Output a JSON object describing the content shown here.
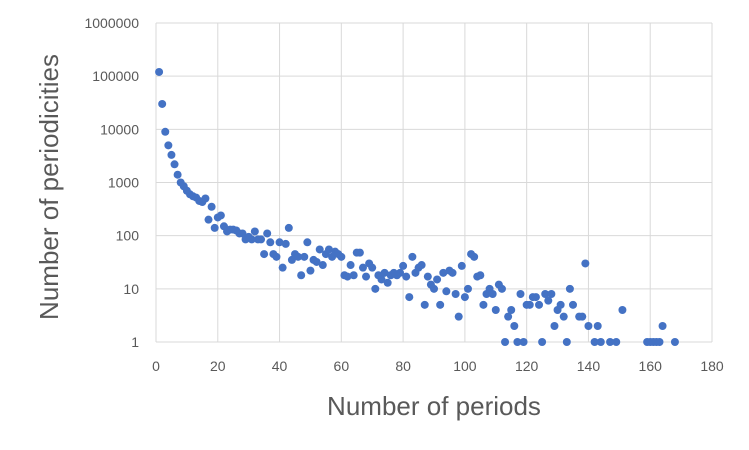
{
  "chart_data": {
    "type": "scatter",
    "title": "",
    "xlabel": "Number of periods",
    "ylabel": "Number of periodicities",
    "xlim": [
      0,
      180
    ],
    "ylim": [
      1,
      1000000
    ],
    "y_scale": "log",
    "grid": true,
    "legend": "none",
    "marker_color": "#4472c4",
    "x_ticks": [
      "0",
      "20",
      "40",
      "60",
      "80",
      "100",
      "120",
      "140",
      "160",
      "180"
    ],
    "y_ticks": [
      "1",
      "10",
      "100",
      "1000",
      "10000",
      "100000",
      "1000000"
    ],
    "x_tick_values": [
      0,
      20,
      40,
      60,
      80,
      100,
      120,
      140,
      160,
      180
    ],
    "y_tick_values": [
      1,
      10,
      100,
      1000,
      10000,
      100000,
      1000000
    ],
    "series": [
      {
        "points": [
          [
            1,
            120000
          ],
          [
            2,
            30000
          ],
          [
            3,
            9000
          ],
          [
            4,
            5000
          ],
          [
            5,
            3300
          ],
          [
            6,
            2200
          ],
          [
            7,
            1400
          ],
          [
            8,
            1000
          ],
          [
            9,
            850
          ],
          [
            10,
            700
          ],
          [
            11,
            600
          ],
          [
            12,
            550
          ],
          [
            13,
            520
          ],
          [
            14,
            450
          ],
          [
            15,
            430
          ],
          [
            16,
            500
          ],
          [
            17,
            200
          ],
          [
            18,
            350
          ],
          [
            19,
            140
          ],
          [
            20,
            220
          ],
          [
            21,
            240
          ],
          [
            22,
            150
          ],
          [
            23,
            120
          ],
          [
            24,
            130
          ],
          [
            25,
            130
          ],
          [
            26,
            125
          ],
          [
            27,
            110
          ],
          [
            28,
            110
          ],
          [
            29,
            85
          ],
          [
            30,
            95
          ],
          [
            31,
            85
          ],
          [
            32,
            120
          ],
          [
            33,
            85
          ],
          [
            34,
            85
          ],
          [
            35,
            45
          ],
          [
            36,
            110
          ],
          [
            37,
            75
          ],
          [
            38,
            45
          ],
          [
            39,
            40
          ],
          [
            40,
            75
          ],
          [
            41,
            25
          ],
          [
            42,
            70
          ],
          [
            43,
            140
          ],
          [
            44,
            35
          ],
          [
            45,
            45
          ],
          [
            46,
            40
          ],
          [
            47,
            18
          ],
          [
            48,
            40
          ],
          [
            49,
            75
          ],
          [
            50,
            22
          ],
          [
            51,
            35
          ],
          [
            52,
            32
          ],
          [
            53,
            55
          ],
          [
            54,
            28
          ],
          [
            55,
            45
          ],
          [
            56,
            55
          ],
          [
            57,
            40
          ],
          [
            58,
            50
          ],
          [
            59,
            45
          ],
          [
            60,
            40
          ],
          [
            61,
            18
          ],
          [
            62,
            17
          ],
          [
            63,
            28
          ],
          [
            64,
            18
          ],
          [
            65,
            48
          ],
          [
            66,
            48
          ],
          [
            67,
            25
          ],
          [
            68,
            17
          ],
          [
            69,
            30
          ],
          [
            70,
            25
          ],
          [
            71,
            10
          ],
          [
            72,
            18
          ],
          [
            73,
            15
          ],
          [
            74,
            20
          ],
          [
            75,
            13
          ],
          [
            76,
            18
          ],
          [
            77,
            20
          ],
          [
            78,
            18
          ],
          [
            79,
            20
          ],
          [
            80,
            27
          ],
          [
            81,
            17
          ],
          [
            82,
            7
          ],
          [
            83,
            40
          ],
          [
            84,
            20
          ],
          [
            85,
            25
          ],
          [
            86,
            28
          ],
          [
            87,
            5
          ],
          [
            88,
            17
          ],
          [
            89,
            12
          ],
          [
            90,
            10
          ],
          [
            91,
            15
          ],
          [
            92,
            5
          ],
          [
            93,
            20
          ],
          [
            94,
            9
          ],
          [
            95,
            22
          ],
          [
            96,
            20
          ],
          [
            97,
            8
          ],
          [
            98,
            3
          ],
          [
            99,
            27
          ],
          [
            100,
            7
          ],
          [
            101,
            10
          ],
          [
            102,
            45
          ],
          [
            103,
            40
          ],
          [
            104,
            17
          ],
          [
            105,
            18
          ],
          [
            106,
            5
          ],
          [
            107,
            8
          ],
          [
            108,
            10
          ],
          [
            109,
            8
          ],
          [
            110,
            4
          ],
          [
            111,
            12
          ],
          [
            112,
            10
          ],
          [
            113,
            1
          ],
          [
            114,
            3
          ],
          [
            115,
            4
          ],
          [
            116,
            2
          ],
          [
            117,
            1
          ],
          [
            118,
            8
          ],
          [
            119,
            1
          ],
          [
            120,
            5
          ],
          [
            121,
            5
          ],
          [
            122,
            7
          ],
          [
            123,
            7
          ],
          [
            124,
            5
          ],
          [
            125,
            1
          ],
          [
            126,
            8
          ],
          [
            127,
            6
          ],
          [
            128,
            8
          ],
          [
            129,
            2
          ],
          [
            130,
            4
          ],
          [
            131,
            5
          ],
          [
            132,
            3
          ],
          [
            133,
            1
          ],
          [
            134,
            10
          ],
          [
            135,
            5
          ],
          [
            137,
            3
          ],
          [
            138,
            3
          ],
          [
            139,
            30
          ],
          [
            140,
            2
          ],
          [
            142,
            1
          ],
          [
            143,
            2
          ],
          [
            144,
            1
          ],
          [
            147,
            1
          ],
          [
            149,
            1
          ],
          [
            151,
            4
          ],
          [
            159,
            1
          ],
          [
            160,
            1
          ],
          [
            161,
            1
          ],
          [
            162,
            1
          ],
          [
            163,
            1
          ],
          [
            164,
            2
          ],
          [
            168,
            1
          ]
        ]
      }
    ]
  }
}
